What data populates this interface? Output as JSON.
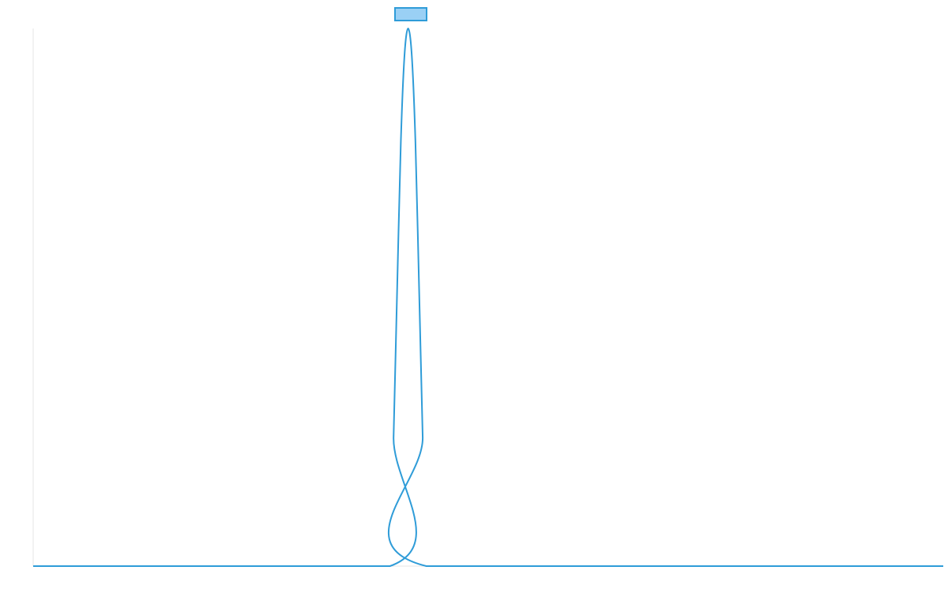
{
  "chart_data": {
    "type": "line",
    "title": "",
    "xlabel": "",
    "ylabel": "",
    "xlim": [
      0,
      100
    ],
    "ylim": [
      0,
      1
    ],
    "grid": false,
    "legend": "top-center",
    "series": [
      {
        "color": "#2f9cd8",
        "fill": "#9ad0f5",
        "x": [
          0,
          39.2,
          39.6,
          40.0,
          40.4,
          40.8,
          41.2,
          41.6,
          42.0,
          42.4,
          42.8,
          43.2,
          100
        ],
        "values": [
          0,
          0,
          0.24,
          0.52,
          0.79,
          0.95,
          1.0,
          0.95,
          0.79,
          0.52,
          0.24,
          0,
          0
        ]
      }
    ]
  }
}
